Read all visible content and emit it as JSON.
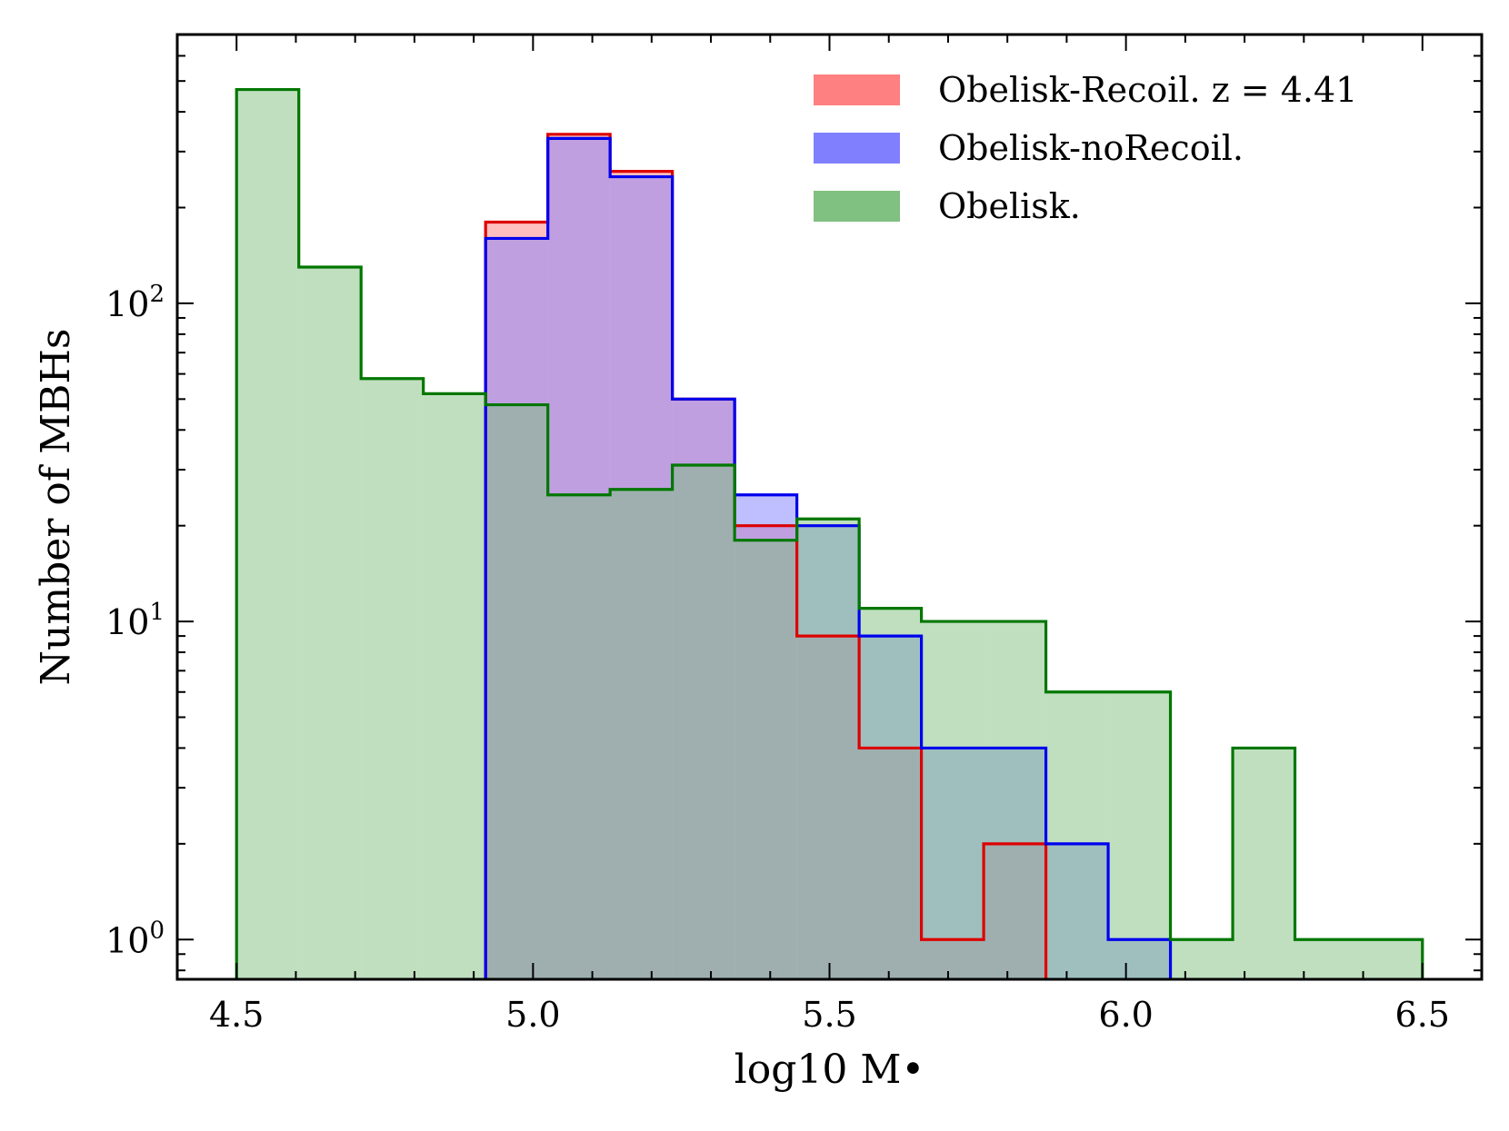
{
  "chart_data": {
    "type": "bar",
    "subtype": "step-histogram",
    "title": "",
    "xlabel": "log10 M•",
    "ylabel": "Number of MBHs",
    "xlim": [
      4.4,
      6.6
    ],
    "ylim": [
      0.75,
      700
    ],
    "yscale": "log",
    "xticks": [
      4.5,
      5.0,
      5.5,
      6.0,
      6.5
    ],
    "xtick_labels": [
      "4.5",
      "5.0",
      "5.5",
      "6.0",
      "6.5"
    ],
    "yticks": [
      1,
      10,
      100
    ],
    "ytick_labels": [
      "10",
      "10",
      "10"
    ],
    "ytick_exponents": [
      "0",
      "1",
      "2"
    ],
    "legend_position": "top-right",
    "grid": false,
    "series": [
      {
        "name": "Obelisk-Recoil.",
        "legend_suffix": "z = 4.41",
        "fill_color": "#ff8080",
        "edge_color": "#dd0000",
        "bin_edges": [
          4.92,
          5.025,
          5.13,
          5.235,
          5.34,
          5.445,
          5.55,
          5.655,
          5.76,
          5.865
        ],
        "counts": [
          180,
          340,
          260,
          50,
          20,
          9,
          4,
          1,
          2
        ]
      },
      {
        "name": "Obelisk-noRecoil.",
        "fill_color": "#8080ff",
        "edge_color": "#0000ee",
        "bin_edges": [
          4.92,
          5.025,
          5.13,
          5.235,
          5.34,
          5.445,
          5.55,
          5.655,
          5.76,
          5.865,
          5.97,
          6.075
        ],
        "counts": [
          160,
          330,
          250,
          50,
          25,
          20,
          9,
          4,
          4,
          2,
          1
        ]
      },
      {
        "name": "Obelisk.",
        "fill_color": "#80c080",
        "edge_color": "#007700",
        "bin_edges": [
          4.5,
          4.605,
          4.71,
          4.815,
          4.92,
          5.025,
          5.13,
          5.235,
          5.34,
          5.445,
          5.55,
          5.655,
          5.76,
          5.865,
          5.97,
          6.075,
          6.18,
          6.285,
          6.39,
          6.5
        ],
        "counts": [
          470,
          130,
          58,
          52,
          48,
          25,
          26,
          31,
          18,
          21,
          11,
          10,
          10,
          6,
          6,
          1,
          4,
          1,
          1
        ]
      }
    ]
  }
}
